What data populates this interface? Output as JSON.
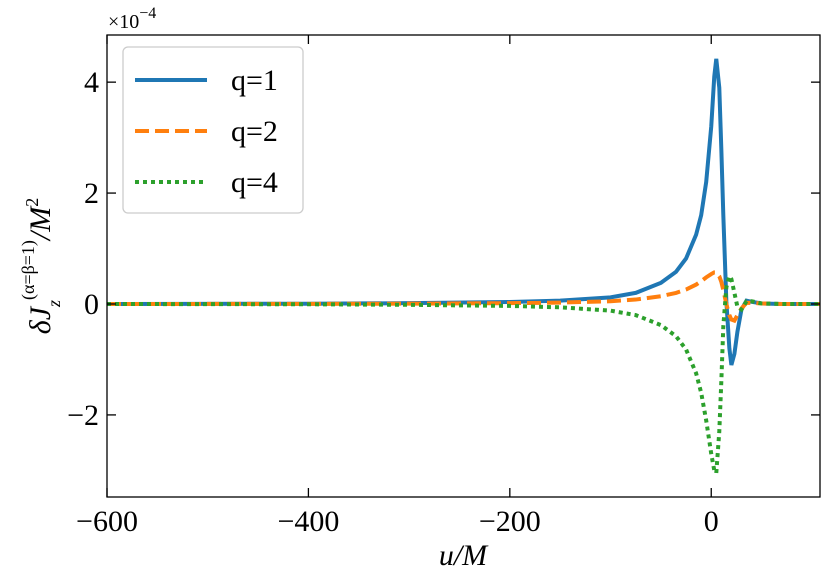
{
  "chart_data": {
    "type": "line",
    "y_multiplier": {
      "base": "×10",
      "exponent": "−4"
    },
    "ylabel": {
      "main": "δJ",
      "sub": "z",
      "sup": "(α=β=1)",
      "tail": "/M",
      "tail_sup": "2"
    },
    "xlabel": "u/M",
    "x": [
      -600,
      -400,
      -300,
      -200,
      -150,
      -100,
      -75,
      -50,
      -35,
      -25,
      -15,
      -10,
      -5,
      0,
      3,
      5,
      8,
      10,
      12,
      15,
      18,
      20,
      23,
      26,
      30,
      35,
      40,
      50,
      70,
      108
    ],
    "series": [
      {
        "name": "q=1",
        "color": "#1f77b4",
        "style": "solid",
        "values": [
          0,
          0.005,
          0.015,
          0.035,
          0.06,
          0.12,
          0.2,
          0.38,
          0.58,
          0.82,
          1.25,
          1.6,
          2.2,
          3.2,
          4.1,
          4.42,
          3.9,
          2.8,
          1.6,
          0.05,
          -0.8,
          -1.1,
          -0.9,
          -0.5,
          -0.1,
          0.06,
          0.04,
          0.01,
          0,
          0
        ]
      },
      {
        "name": "q=2",
        "color": "#ff7f0e",
        "style": "dashed",
        "values": [
          0,
          0.002,
          0.006,
          0.015,
          0.025,
          0.05,
          0.08,
          0.14,
          0.2,
          0.26,
          0.35,
          0.41,
          0.48,
          0.54,
          0.57,
          0.57,
          0.5,
          0.4,
          0.25,
          0,
          -0.2,
          -0.28,
          -0.3,
          -0.2,
          -0.08,
          0.02,
          0.02,
          0.01,
          0,
          0
        ]
      },
      {
        "name": "q=4",
        "color": "#2ca02c",
        "style": "dotted",
        "values": [
          0,
          -0.005,
          -0.015,
          -0.035,
          -0.06,
          -0.12,
          -0.2,
          -0.38,
          -0.58,
          -0.82,
          -1.25,
          -1.6,
          -2.1,
          -2.7,
          -3.0,
          -3.05,
          -2.3,
          -1.4,
          -0.4,
          0.3,
          0.5,
          0.45,
          0.2,
          -0.05,
          -0.1,
          0.05,
          0.05,
          0.01,
          0,
          0
        ]
      }
    ],
    "xlim": [
      -600,
      108
    ],
    "ylim": [
      -3.48,
      4.85
    ],
    "xticks": [
      {
        "value": -600,
        "label": "−600"
      },
      {
        "value": -400,
        "label": "−400"
      },
      {
        "value": -200,
        "label": "−200"
      },
      0
    ],
    "yticks": [
      {
        "value": -2,
        "label": "−2"
      },
      0,
      2,
      4
    ],
    "legend": "upper left",
    "grid": false
  }
}
